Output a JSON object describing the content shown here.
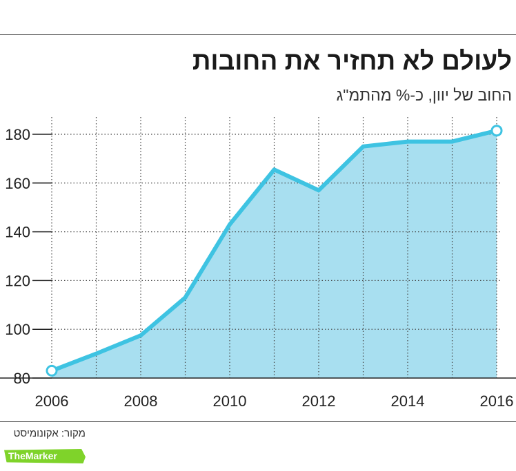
{
  "title": "לעולם לא תחזיר את החובות",
  "subtitle": "החוב של יוון, כ-% מהתמ\"ג",
  "source": "מקור: אקונומיסט",
  "brand": {
    "part1": "The",
    "part2": "Marker"
  },
  "colors": {
    "line": "#3ec3e2",
    "fill": "#a8dff0",
    "grid": "#444444",
    "axis": "#222222"
  },
  "chart_data": {
    "type": "area",
    "x": [
      2006,
      2007,
      2008,
      2009,
      2010,
      2011,
      2012,
      2013,
      2014,
      2015,
      2016
    ],
    "values": [
      83,
      90,
      97.5,
      113,
      143,
      165.5,
      157,
      175,
      177,
      177,
      181.5
    ],
    "xticks": [
      2006,
      2008,
      2010,
      2012,
      2014,
      2016
    ],
    "yticks": [
      80,
      100,
      120,
      140,
      160,
      180
    ],
    "xlim": [
      2006,
      2016
    ],
    "ylim": [
      80,
      185
    ],
    "grid": true,
    "markers_at_ends": true
  }
}
